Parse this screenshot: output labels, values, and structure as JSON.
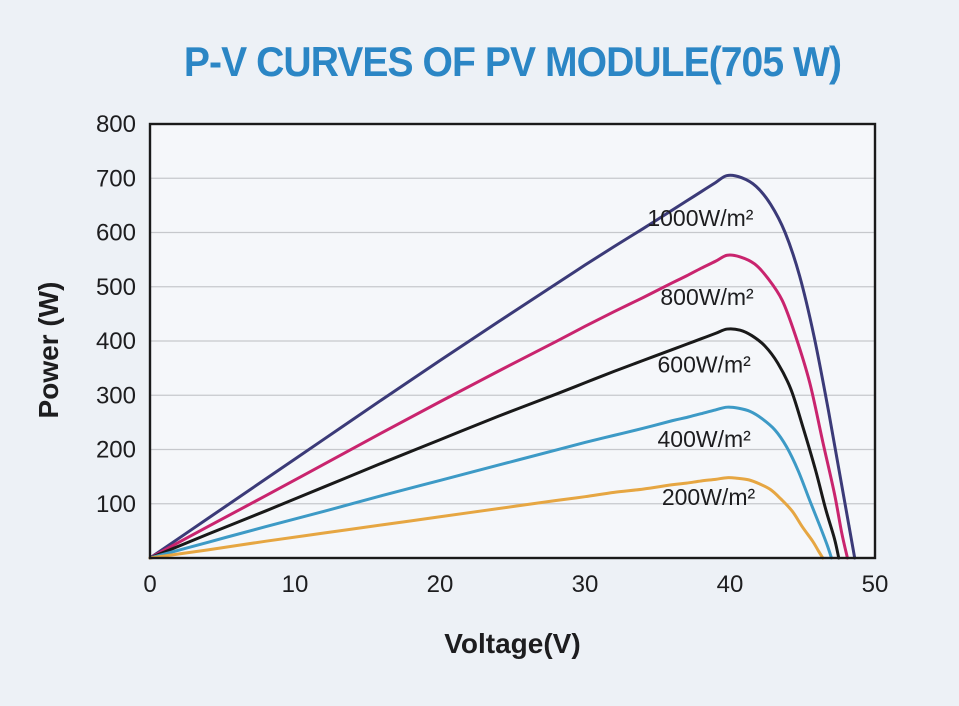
{
  "title": {
    "text": "P-V CURVES OF PV MODULE(705 W)",
    "color": "#2b86c5"
  },
  "chart_data": {
    "type": "line",
    "title": "P-V CURVES OF PV MODULE(705 W)",
    "xlabel": "Voltage(V)",
    "ylabel": "Power (W)",
    "xlim": [
      0,
      50
    ],
    "ylim": [
      0,
      800
    ],
    "x_ticks": [
      0,
      10,
      20,
      30,
      40,
      50
    ],
    "y_ticks": [
      100,
      200,
      300,
      400,
      500,
      600,
      700,
      800
    ],
    "grid": "horizontal",
    "legend_position": "inline-labels",
    "plot_background": "#f5f7fa",
    "grid_color": "#c6c8cc",
    "axis_color": "#1a1a1a",
    "series": [
      {
        "name": "1000W/m2",
        "label": {
          "text": "1000W/m²",
          "x": 34.3,
          "y": 627
        },
        "color": "#3b3a78",
        "peak_power_w": 705,
        "open_circuit_v": 48.6,
        "points": [
          [
            0,
            0
          ],
          [
            4,
            73
          ],
          [
            8,
            146
          ],
          [
            12,
            219
          ],
          [
            16,
            292
          ],
          [
            20,
            364
          ],
          [
            24,
            435
          ],
          [
            28,
            505
          ],
          [
            30,
            540
          ],
          [
            32,
            574
          ],
          [
            34,
            607
          ],
          [
            36,
            641
          ],
          [
            37,
            658
          ],
          [
            38,
            675
          ],
          [
            39,
            692
          ],
          [
            39.8,
            705
          ],
          [
            40.8,
            701
          ],
          [
            41.8,
            685
          ],
          [
            42.8,
            652
          ],
          [
            43.8,
            600
          ],
          [
            44.8,
            520
          ],
          [
            45.8,
            408
          ],
          [
            46.8,
            270
          ],
          [
            47.6,
            150
          ],
          [
            48.2,
            60
          ],
          [
            48.6,
            0
          ]
        ]
      },
      {
        "name": "800W/m2",
        "label": {
          "text": "800W/m²",
          "x": 35.2,
          "y": 481
        },
        "color": "#c9246e",
        "peak_power_w": 558,
        "open_circuit_v": 48.1,
        "points": [
          [
            0,
            0
          ],
          [
            4,
            58
          ],
          [
            8,
            115
          ],
          [
            12,
            173
          ],
          [
            16,
            231
          ],
          [
            20,
            288
          ],
          [
            24,
            344
          ],
          [
            28,
            399
          ],
          [
            30,
            427
          ],
          [
            32,
            454
          ],
          [
            34,
            480
          ],
          [
            36,
            507
          ],
          [
            37,
            520
          ],
          [
            38,
            534
          ],
          [
            39,
            547
          ],
          [
            39.8,
            558
          ],
          [
            40.7,
            555
          ],
          [
            41.7,
            542
          ],
          [
            42.6,
            516
          ],
          [
            43.6,
            475
          ],
          [
            44.5,
            411
          ],
          [
            45.5,
            323
          ],
          [
            46.4,
            214
          ],
          [
            47.2,
            119
          ],
          [
            47.7,
            47
          ],
          [
            48.1,
            0
          ]
        ]
      },
      {
        "name": "600W/m2",
        "label": {
          "text": "600W/m²",
          "x": 35.0,
          "y": 357
        },
        "color": "#191919",
        "peak_power_w": 422,
        "open_circuit_v": 47.5,
        "points": [
          [
            0,
            0
          ],
          [
            4,
            44
          ],
          [
            8,
            87
          ],
          [
            12,
            131
          ],
          [
            16,
            175
          ],
          [
            20,
            218
          ],
          [
            24,
            261
          ],
          [
            28,
            302
          ],
          [
            30,
            323
          ],
          [
            32,
            344
          ],
          [
            34,
            364
          ],
          [
            36,
            384
          ],
          [
            37,
            394
          ],
          [
            38,
            404
          ],
          [
            39,
            414
          ],
          [
            39.8,
            422
          ],
          [
            40.7,
            420
          ],
          [
            41.5,
            410
          ],
          [
            42.4,
            391
          ],
          [
            43.3,
            359
          ],
          [
            44.2,
            311
          ],
          [
            45,
            244
          ],
          [
            45.9,
            162
          ],
          [
            46.6,
            90
          ],
          [
            47.2,
            36
          ],
          [
            47.5,
            0
          ]
        ]
      },
      {
        "name": "400W/m2",
        "label": {
          "text": "400W/m²",
          "x": 35.0,
          "y": 219
        },
        "color": "#3d9ac6",
        "peak_power_w": 278,
        "open_circuit_v": 47.0,
        "points": [
          [
            0,
            0
          ],
          [
            4,
            29
          ],
          [
            8,
            58
          ],
          [
            12,
            86
          ],
          [
            16,
            115
          ],
          [
            20,
            143
          ],
          [
            24,
            171
          ],
          [
            28,
            199
          ],
          [
            30,
            213
          ],
          [
            32,
            226
          ],
          [
            34,
            239
          ],
          [
            36,
            253
          ],
          [
            37,
            259
          ],
          [
            38,
            266
          ],
          [
            39,
            273
          ],
          [
            39.8,
            278
          ],
          [
            40.6,
            276
          ],
          [
            41.4,
            270
          ],
          [
            42.2,
            257
          ],
          [
            43.1,
            236
          ],
          [
            43.9,
            205
          ],
          [
            44.7,
            161
          ],
          [
            45.5,
            106
          ],
          [
            46.2,
            59
          ],
          [
            46.7,
            24
          ],
          [
            47,
            0
          ]
        ]
      },
      {
        "name": "200W/m2",
        "label": {
          "text": "200W/m²",
          "x": 35.3,
          "y": 112
        },
        "color": "#e6a642",
        "peak_power_w": 148,
        "open_circuit_v": 46.4,
        "points": [
          [
            0,
            0
          ],
          [
            4,
            15
          ],
          [
            8,
            31
          ],
          [
            12,
            46
          ],
          [
            16,
            61
          ],
          [
            20,
            76
          ],
          [
            24,
            91
          ],
          [
            28,
            106
          ],
          [
            30,
            113
          ],
          [
            32,
            121
          ],
          [
            34,
            127
          ],
          [
            36,
            135
          ],
          [
            37,
            138
          ],
          [
            38,
            142
          ],
          [
            39,
            145
          ],
          [
            39.8,
            148
          ],
          [
            40.5,
            147
          ],
          [
            41.3,
            144
          ],
          [
            42,
            137
          ],
          [
            42.8,
            126
          ],
          [
            43.5,
            109
          ],
          [
            44.3,
            86
          ],
          [
            45,
            57
          ],
          [
            45.7,
            31
          ],
          [
            46.1,
            13
          ],
          [
            46.4,
            0
          ]
        ]
      }
    ]
  }
}
